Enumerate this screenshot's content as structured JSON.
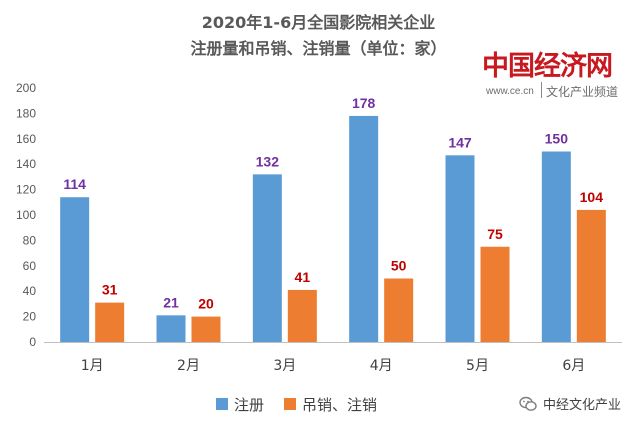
{
  "chart_data": {
    "type": "bar",
    "title": "2020年1-6月全国影院相关企业",
    "subtitle": "注册量和吊销、注销量（单位：家）",
    "categories": [
      "1月",
      "2月",
      "3月",
      "4月",
      "5月",
      "6月"
    ],
    "ylim": [
      0,
      200
    ],
    "yticks": [
      0,
      20,
      40,
      60,
      80,
      100,
      120,
      140,
      160,
      180,
      200
    ],
    "grid": false,
    "legend_position": "bottom",
    "series": [
      {
        "name": "注册",
        "values": [
          114,
          21,
          132,
          178,
          147,
          150
        ],
        "color": "#5b9bd5",
        "label_color": "#7030a0"
      },
      {
        "name": "吊销、注销",
        "values": [
          31,
          20,
          41,
          50,
          75,
          104
        ],
        "color": "#ed7d31",
        "label_color": "#c00000"
      }
    ]
  },
  "watermark": {
    "brand": "中国经济网",
    "url": "www.ce.cn",
    "sub": "文化产业频道"
  },
  "footer": {
    "account": "中经文化产业"
  }
}
